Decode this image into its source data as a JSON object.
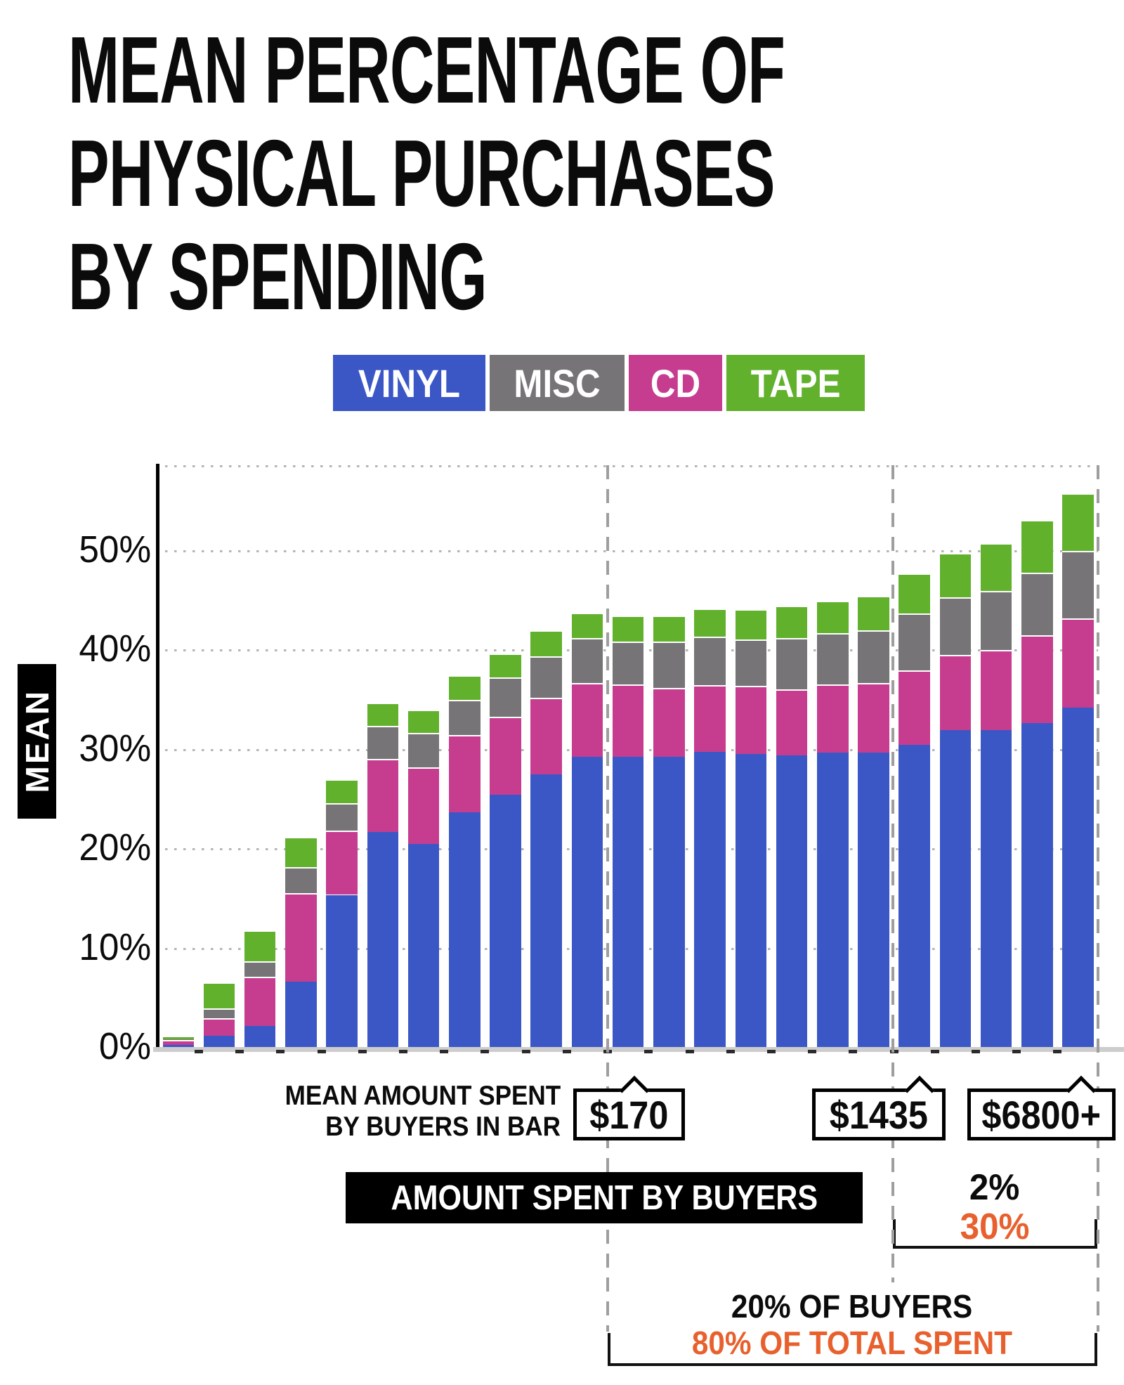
{
  "title": {
    "lines": [
      "MEAN PERCENTAGE OF",
      "PHYSICAL PURCHASES",
      "BY SPENDING"
    ]
  },
  "legend": [
    {
      "label": "VINYL",
      "color": "#3b57c6"
    },
    {
      "label": "MISC",
      "color": "#767476"
    },
    {
      "label": "CD",
      "color": "#c63d90"
    },
    {
      "label": "TAPE",
      "color": "#61b12d"
    }
  ],
  "y_axis": {
    "label": "MEAN",
    "ticks": [
      "0%",
      "10%",
      "20%",
      "30%",
      "40%",
      "50%"
    ]
  },
  "chart_data": {
    "type": "bar",
    "stacked": true,
    "title": "Mean percentage of physical purchases by spending",
    "ylabel": "MEAN",
    "ylim": [
      0,
      58.5
    ],
    "gridlines_pct": [
      10,
      20,
      30,
      40,
      50
    ],
    "categories": [
      "bin1",
      "bin2",
      "bin3",
      "bin4",
      "bin5",
      "bin6",
      "bin7",
      "bin8",
      "bin9",
      "bin10",
      "bin11",
      "bin12",
      "bin13",
      "bin14",
      "bin15",
      "bin16",
      "bin17",
      "bin18",
      "bin19",
      "bin20",
      "bin21",
      "bin22",
      "bin23"
    ],
    "stack_order": [
      "VINYL",
      "CD",
      "MISC",
      "TAPE"
    ],
    "series": [
      {
        "name": "VINYL",
        "color": "#3b57c6",
        "values": [
          0.2,
          1.1,
          2.1,
          6.6,
          15.3,
          21.6,
          20.4,
          23.6,
          25.4,
          27.4,
          29.2,
          29.2,
          29.2,
          29.7,
          29.5,
          29.3,
          29.6,
          29.6,
          30.4,
          31.9,
          31.9,
          32.6,
          34.1
        ]
      },
      {
        "name": "CD",
        "color": "#c63d90",
        "values": [
          0.5,
          1.8,
          5.0,
          8.9,
          6.5,
          7.4,
          7.7,
          7.8,
          7.8,
          7.7,
          7.4,
          7.3,
          6.9,
          6.7,
          6.8,
          6.7,
          6.9,
          7.0,
          7.5,
          7.5,
          8.0,
          8.8,
          9.0
        ]
      },
      {
        "name": "MISC",
        "color": "#767476",
        "values": [
          0.1,
          1.0,
          1.5,
          2.6,
          2.7,
          3.3,
          3.5,
          3.5,
          4.0,
          4.2,
          4.5,
          4.3,
          4.7,
          4.9,
          4.7,
          5.1,
          5.1,
          5.3,
          5.7,
          5.8,
          6.0,
          6.3,
          6.8
        ]
      },
      {
        "name": "TAPE",
        "color": "#61b12d",
        "values": [
          0.3,
          2.6,
          3.1,
          3.0,
          2.4,
          2.3,
          2.3,
          2.5,
          2.4,
          2.6,
          2.6,
          2.6,
          2.6,
          2.8,
          3.0,
          3.3,
          3.3,
          3.5,
          4.0,
          4.5,
          4.8,
          5.3,
          5.8
        ]
      }
    ]
  },
  "annotations": {
    "row_label": {
      "line1": "MEAN AMOUNT SPENT",
      "line2": "BY BUYERS IN BAR"
    },
    "callouts": [
      {
        "text": "$170"
      },
      {
        "text": "$1435"
      },
      {
        "text": "$6800+"
      }
    ],
    "x_axis_label": "AMOUNT SPENT BY BUYERS",
    "right_stats": {
      "buyers": "2%",
      "spent": "30%"
    },
    "bottom_stats": {
      "buyers": "20% OF BUYERS",
      "spent": "80% OF TOTAL SPENT"
    }
  },
  "colors": {
    "vinyl": "#3b57c6",
    "misc": "#767476",
    "cd": "#c63d90",
    "tape": "#61b12d",
    "accent_orange": "#e8602d",
    "gridline": "#b5b5b5",
    "dashed_line": "#9e9e9e",
    "baseline": "#cdcdcd",
    "text": "#0b0b0b"
  }
}
